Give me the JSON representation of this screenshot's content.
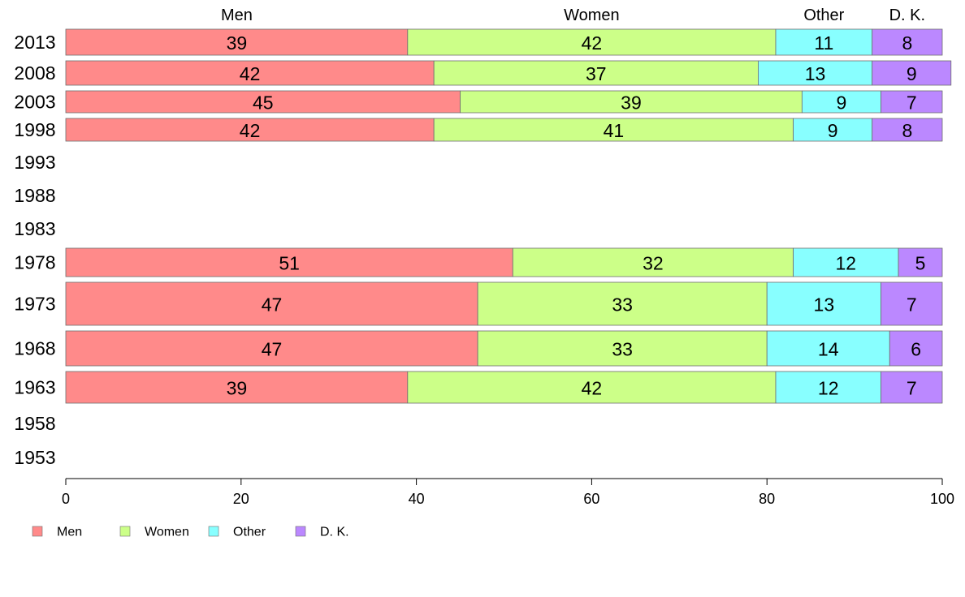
{
  "chart_data": {
    "type": "bar",
    "orientation": "horizontal",
    "stacked": true,
    "title": "",
    "xlabel": "",
    "ylabel": "",
    "xlim": [
      0,
      100
    ],
    "x_ticks": [
      0,
      20,
      40,
      60,
      80,
      100
    ],
    "grid": false,
    "legend_position": "bottom-left",
    "categories": [
      "2013",
      "2008",
      "2003",
      "1998",
      "1993",
      "1988",
      "1983",
      "1978",
      "1973",
      "1968",
      "1963",
      "1958",
      "1953"
    ],
    "series": [
      {
        "name": "Men",
        "color": "#FF8A8A",
        "values": [
          39,
          42,
          45,
          42,
          null,
          null,
          null,
          51,
          47,
          47,
          39,
          null,
          null
        ]
      },
      {
        "name": "Women",
        "color": "#CCFF88",
        "values": [
          42,
          37,
          39,
          41,
          null,
          null,
          null,
          32,
          33,
          33,
          42,
          null,
          null
        ]
      },
      {
        "name": "Other",
        "color": "#88FFFF",
        "values": [
          11,
          13,
          9,
          9,
          null,
          null,
          null,
          12,
          13,
          14,
          12,
          null,
          null
        ]
      },
      {
        "name": "D. K.",
        "color": "#BB88FF",
        "values": [
          8,
          9,
          7,
          8,
          null,
          null,
          null,
          5,
          7,
          6,
          7,
          null,
          null
        ]
      }
    ]
  }
}
